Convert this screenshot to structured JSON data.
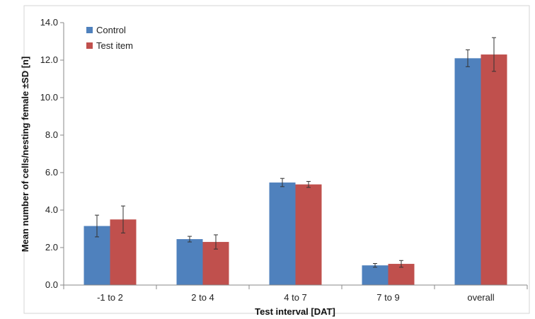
{
  "chart_data": {
    "type": "bar",
    "title": "",
    "xlabel": "Test interval [DAT]",
    "ylabel": "Mean number of cells/nesting female ±SD [n]",
    "categories": [
      "-1 to 2",
      "2 to 4",
      "4 to 7",
      "7 to 9",
      "overall"
    ],
    "series": [
      {
        "name": "Control",
        "color": "#4F81BD",
        "values": [
          3.15,
          2.45,
          5.47,
          1.05,
          12.1
        ],
        "error": [
          0.58,
          0.15,
          0.22,
          0.1,
          0.45
        ]
      },
      {
        "name": "Test item",
        "color": "#C0504D",
        "values": [
          3.5,
          2.3,
          5.37,
          1.13,
          12.3
        ],
        "error": [
          0.72,
          0.38,
          0.16,
          0.18,
          0.9
        ]
      }
    ],
    "ylim": [
      0,
      14
    ],
    "yticks": [
      "0.0",
      "2.0",
      "4.0",
      "6.0",
      "8.0",
      "10.0",
      "12.0",
      "14.0"
    ],
    "grid": false,
    "legend_position": "top-left"
  }
}
